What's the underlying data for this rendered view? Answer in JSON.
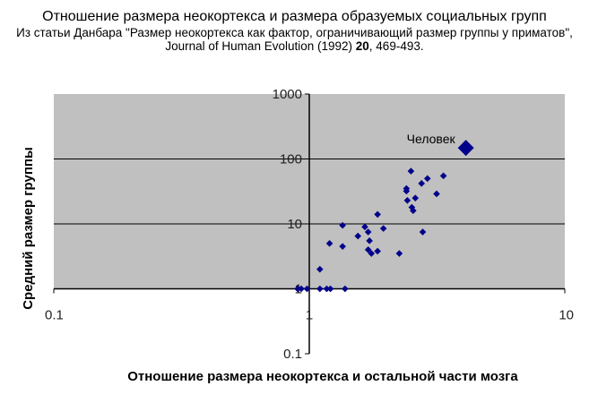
{
  "chart_data": {
    "type": "scatter",
    "title": "Отношение размера неокортекса и размера образуемых социальных групп",
    "subtitle_text": "Из статьи Данбара \"Размер неокортекса как фактор, ограничивающий размер группы у приматов\", Journal of Human Evolution (1992) ",
    "subtitle_volume": "20",
    "subtitle_pages": ", 469-493.",
    "xlabel": "Отношение размера неокортекса и остальной части мозга",
    "ylabel": "Средний размер группы",
    "x_scale": "log",
    "y_scale": "log",
    "xlim": [
      0.1,
      10
    ],
    "ylim": [
      0.1,
      1000
    ],
    "x_ticks": [
      {
        "value": 0.1,
        "label": "0.1"
      },
      {
        "value": 1,
        "label": "1"
      },
      {
        "value": 10,
        "label": "10"
      }
    ],
    "y_ticks": [
      {
        "value": 0.1,
        "label": "0.1"
      },
      {
        "value": 1,
        "label": "1"
      },
      {
        "value": 10,
        "label": "10"
      },
      {
        "value": 100,
        "label": "100"
      },
      {
        "value": 1000,
        "label": "1000"
      }
    ],
    "grid": "horizontal",
    "marker_color": "#00008B",
    "plot_background": "#C0C0C0",
    "points": [
      {
        "x": 0.9,
        "y": 1.0
      },
      {
        "x": 0.93,
        "y": 1.0
      },
      {
        "x": 0.98,
        "y": 1.0
      },
      {
        "x": 1.1,
        "y": 1.0
      },
      {
        "x": 1.17,
        "y": 1.0
      },
      {
        "x": 1.21,
        "y": 1.0
      },
      {
        "x": 1.38,
        "y": 1.0
      },
      {
        "x": 1.1,
        "y": 2.0
      },
      {
        "x": 1.2,
        "y": 5.0
      },
      {
        "x": 1.35,
        "y": 4.5
      },
      {
        "x": 1.35,
        "y": 9.5
      },
      {
        "x": 1.55,
        "y": 6.5
      },
      {
        "x": 1.65,
        "y": 9.0
      },
      {
        "x": 1.7,
        "y": 7.5
      },
      {
        "x": 1.7,
        "y": 4.0
      },
      {
        "x": 1.72,
        "y": 5.5
      },
      {
        "x": 1.75,
        "y": 3.5
      },
      {
        "x": 1.85,
        "y": 14.0
      },
      {
        "x": 1.85,
        "y": 3.8
      },
      {
        "x": 1.95,
        "y": 8.5
      },
      {
        "x": 2.25,
        "y": 3.5
      },
      {
        "x": 2.4,
        "y": 35.0
      },
      {
        "x": 2.4,
        "y": 32.0
      },
      {
        "x": 2.42,
        "y": 23.0
      },
      {
        "x": 2.5,
        "y": 65.0
      },
      {
        "x": 2.52,
        "y": 18.0
      },
      {
        "x": 2.55,
        "y": 16.0
      },
      {
        "x": 2.6,
        "y": 25.0
      },
      {
        "x": 2.75,
        "y": 42.0
      },
      {
        "x": 2.78,
        "y": 7.5
      },
      {
        "x": 2.9,
        "y": 50.0
      },
      {
        "x": 3.15,
        "y": 29.0
      },
      {
        "x": 3.35,
        "y": 55.0
      }
    ],
    "highlight": {
      "x": 4.1,
      "y": 148,
      "label": "Человек"
    }
  }
}
